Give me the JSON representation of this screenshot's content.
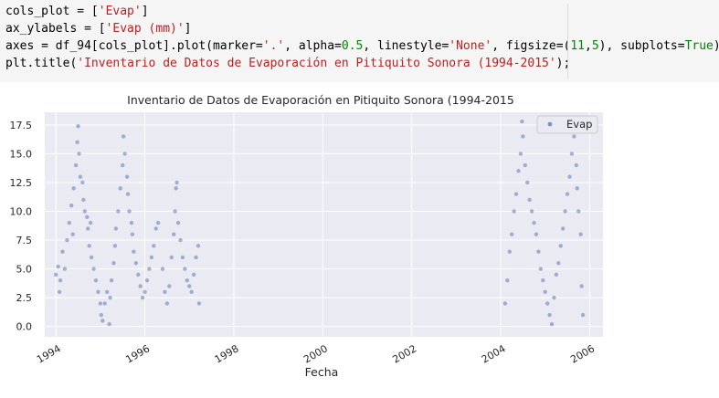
{
  "code_cell": {
    "lines": [
      [
        {
          "t": "cols_plot = [",
          "c": ""
        },
        {
          "t": "'Evap'",
          "c": "str"
        },
        {
          "t": "]",
          "c": ""
        }
      ],
      [
        {
          "t": "ax_ylabels = [",
          "c": ""
        },
        {
          "t": "'Evap (mm)'",
          "c": "str"
        },
        {
          "t": "]",
          "c": ""
        }
      ],
      [
        {
          "t": "axes = df_94[cols_plot].plot(marker=",
          "c": ""
        },
        {
          "t": "'.'",
          "c": "str"
        },
        {
          "t": ", alpha=",
          "c": ""
        },
        {
          "t": "0.5",
          "c": "num"
        },
        {
          "t": ", linestyle=",
          "c": ""
        },
        {
          "t": "'None'",
          "c": "str"
        },
        {
          "t": ", figsize=(",
          "c": ""
        },
        {
          "t": "11",
          "c": "num"
        },
        {
          "t": ",",
          "c": ""
        },
        {
          "t": "5",
          "c": "num"
        },
        {
          "t": "), subplots=",
          "c": ""
        },
        {
          "t": "True",
          "c": "kw"
        },
        {
          "t": ")",
          "c": ""
        }
      ],
      [
        {
          "t": "plt.title(",
          "c": ""
        },
        {
          "t": "'Inventario de Datos de Evaporación en Pitiquito Sonora (1994-2015'",
          "c": "str"
        },
        {
          "t": ");",
          "c": ""
        }
      ]
    ]
  },
  "chart_data": {
    "type": "scatter",
    "title": "Inventario de Datos de Evaporación en Pitiquito Sonora (1994-2015",
    "xlabel": "Fecha",
    "ylabel": "",
    "x_ticks": [
      "1994",
      "1996",
      "1998",
      "2000",
      "2002",
      "2004",
      "2006"
    ],
    "y_ticks": [
      "0.0",
      "2.5",
      "5.0",
      "7.5",
      "10.0",
      "12.5",
      "15.0",
      "17.5"
    ],
    "xlim": [
      1993.75,
      2006.3
    ],
    "ylim": [
      -0.9,
      18.6
    ],
    "grid": true,
    "legend_position": "top-right",
    "series": [
      {
        "name": "Evap",
        "color": "#4c72b0",
        "alpha": 0.5,
        "points": [
          [
            1994.0,
            4.5
          ],
          [
            1994.05,
            5.2
          ],
          [
            1994.08,
            3.0
          ],
          [
            1994.1,
            4.0
          ],
          [
            1994.15,
            6.5
          ],
          [
            1994.2,
            5.0
          ],
          [
            1994.25,
            7.5
          ],
          [
            1994.3,
            9.0
          ],
          [
            1994.35,
            10.5
          ],
          [
            1994.38,
            8.0
          ],
          [
            1994.4,
            12.0
          ],
          [
            1994.45,
            14.0
          ],
          [
            1994.48,
            16.0
          ],
          [
            1994.5,
            17.4
          ],
          [
            1994.52,
            15.0
          ],
          [
            1994.55,
            13.0
          ],
          [
            1994.6,
            12.5
          ],
          [
            1994.62,
            11.0
          ],
          [
            1994.65,
            10.0
          ],
          [
            1994.7,
            9.5
          ],
          [
            1994.72,
            8.5
          ],
          [
            1994.75,
            7.0
          ],
          [
            1994.78,
            9.0
          ],
          [
            1994.8,
            6.0
          ],
          [
            1994.85,
            5.0
          ],
          [
            1994.9,
            4.0
          ],
          [
            1994.95,
            3.0
          ],
          [
            1995.0,
            2.0
          ],
          [
            1995.02,
            1.0
          ],
          [
            1995.05,
            0.5
          ],
          [
            1995.1,
            2.0
          ],
          [
            1995.15,
            3.0
          ],
          [
            1995.2,
            0.2
          ],
          [
            1995.22,
            2.5
          ],
          [
            1995.25,
            4.0
          ],
          [
            1995.3,
            5.5
          ],
          [
            1995.33,
            7.0
          ],
          [
            1995.35,
            8.5
          ],
          [
            1995.4,
            10.0
          ],
          [
            1995.45,
            12.0
          ],
          [
            1995.5,
            14.0
          ],
          [
            1995.52,
            16.5
          ],
          [
            1995.55,
            15.0
          ],
          [
            1995.6,
            13.0
          ],
          [
            1995.62,
            11.5
          ],
          [
            1995.65,
            10.0
          ],
          [
            1995.7,
            9.0
          ],
          [
            1995.72,
            8.0
          ],
          [
            1995.75,
            6.5
          ],
          [
            1995.8,
            5.5
          ],
          [
            1995.85,
            4.5
          ],
          [
            1995.9,
            3.5
          ],
          [
            1995.95,
            2.5
          ],
          [
            1996.0,
            3.0
          ],
          [
            1996.05,
            4.0
          ],
          [
            1996.1,
            5.0
          ],
          [
            1996.15,
            6.0
          ],
          [
            1996.2,
            7.0
          ],
          [
            1996.25,
            8.5
          ],
          [
            1996.3,
            9.0
          ],
          [
            1996.4,
            5.0
          ],
          [
            1996.45,
            3.0
          ],
          [
            1996.5,
            2.0
          ],
          [
            1996.55,
            3.5
          ],
          [
            1996.6,
            6.0
          ],
          [
            1996.65,
            8.0
          ],
          [
            1996.68,
            10.0
          ],
          [
            1996.7,
            12.0
          ],
          [
            1996.72,
            12.5
          ],
          [
            1996.75,
            9.0
          ],
          [
            1996.8,
            7.5
          ],
          [
            1996.85,
            6.0
          ],
          [
            1996.9,
            5.0
          ],
          [
            1996.95,
            4.0
          ],
          [
            1997.0,
            3.5
          ],
          [
            1997.05,
            3.0
          ],
          [
            1997.1,
            4.5
          ],
          [
            1997.15,
            6.0
          ],
          [
            1997.2,
            7.0
          ],
          [
            1997.22,
            2.0
          ],
          [
            2004.1,
            2.0
          ],
          [
            2004.15,
            4.0
          ],
          [
            2004.2,
            6.5
          ],
          [
            2004.25,
            8.0
          ],
          [
            2004.3,
            10.0
          ],
          [
            2004.35,
            11.5
          ],
          [
            2004.4,
            13.5
          ],
          [
            2004.45,
            15.0
          ],
          [
            2004.48,
            17.8
          ],
          [
            2004.5,
            16.5
          ],
          [
            2004.55,
            14.0
          ],
          [
            2004.6,
            12.5
          ],
          [
            2004.65,
            11.0
          ],
          [
            2004.7,
            10.0
          ],
          [
            2004.75,
            9.0
          ],
          [
            2004.8,
            8.0
          ],
          [
            2004.85,
            6.5
          ],
          [
            2004.9,
            5.0
          ],
          [
            2004.95,
            4.0
          ],
          [
            2005.0,
            3.0
          ],
          [
            2005.05,
            2.0
          ],
          [
            2005.1,
            1.0
          ],
          [
            2005.15,
            0.2
          ],
          [
            2005.2,
            2.5
          ],
          [
            2005.25,
            4.5
          ],
          [
            2005.3,
            5.5
          ],
          [
            2005.35,
            7.0
          ],
          [
            2005.4,
            8.5
          ],
          [
            2005.45,
            10.0
          ],
          [
            2005.5,
            11.5
          ],
          [
            2005.55,
            13.0
          ],
          [
            2005.6,
            15.0
          ],
          [
            2005.65,
            16.5
          ],
          [
            2005.7,
            14.0
          ],
          [
            2005.72,
            12.0
          ],
          [
            2005.75,
            10.0
          ],
          [
            2005.8,
            8.0
          ],
          [
            2005.82,
            3.5
          ],
          [
            2005.85,
            1.0
          ]
        ]
      }
    ]
  }
}
